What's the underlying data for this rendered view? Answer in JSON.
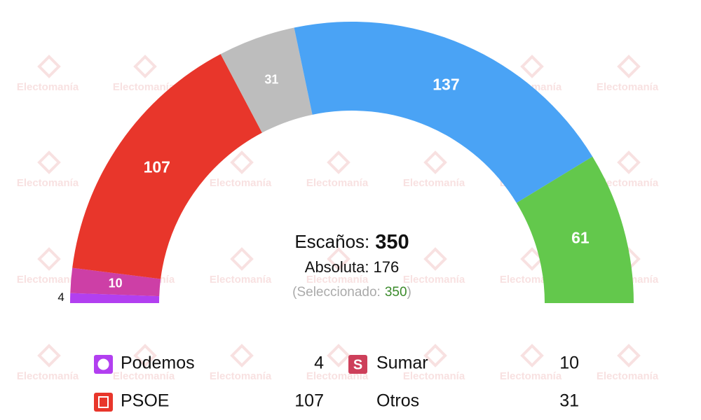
{
  "chart_data": {
    "type": "semicircle",
    "watermark": "Electomanía",
    "categories": [
      "Podemos",
      "Sumar",
      "PSOE",
      "Otros",
      null,
      null
    ],
    "values": [
      4,
      10,
      107,
      31,
      137,
      61
    ],
    "colors": [
      "#b23ff0",
      "#cd3fa6",
      "#e8362b",
      "#bdbdbd",
      "#4aa3f5",
      "#63c84c"
    ],
    "total_label": "Escaños:",
    "total": 350,
    "majority_label": "Absoluta:",
    "majority": 176,
    "selected_label": "(Seleccionado:",
    "selected": 350,
    "selected_close": ")"
  }
}
